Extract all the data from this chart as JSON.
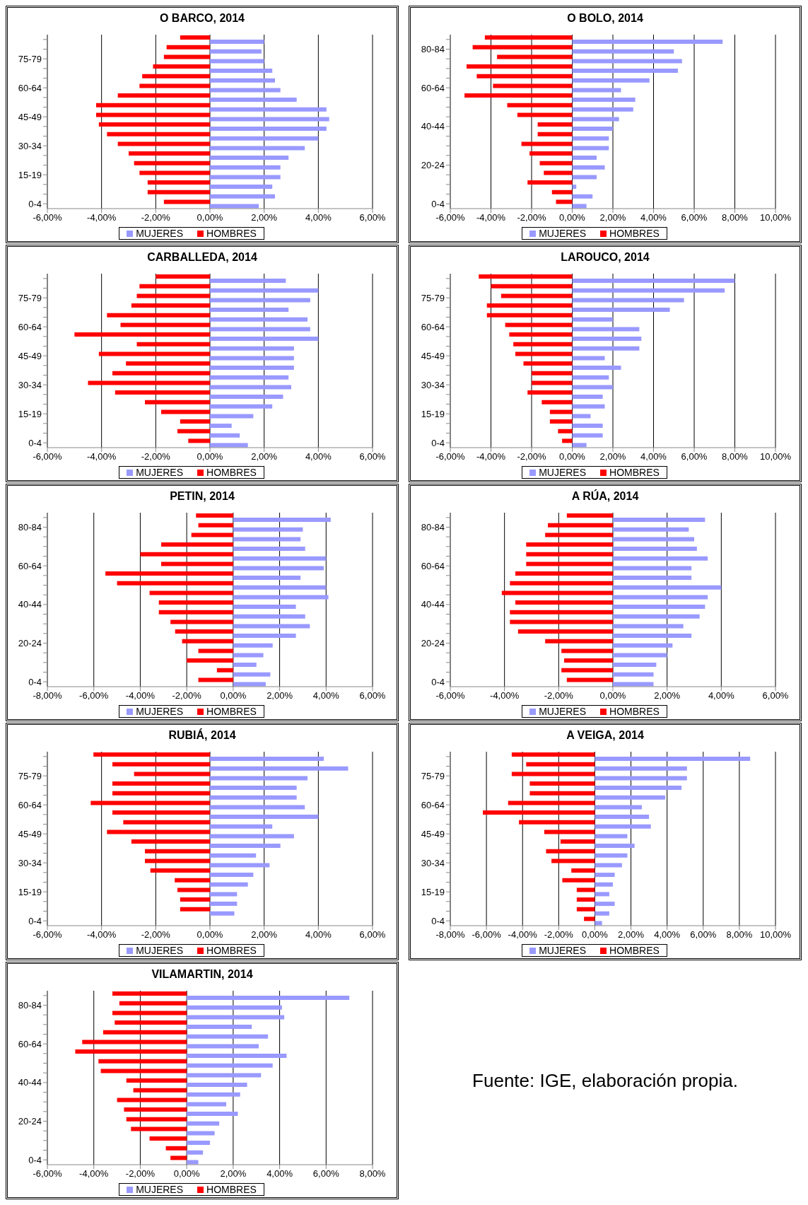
{
  "chart_data": [
    {
      "type": "bar",
      "orientation": "horizontal",
      "title": "O BARCO, 2014",
      "categories": [
        null,
        null,
        "75-79",
        null,
        null,
        "60-64",
        null,
        null,
        "45-49",
        null,
        null,
        "30-34",
        null,
        null,
        "15-19",
        null,
        null,
        "0-4"
      ],
      "series": [
        {
          "name": "MUJERES",
          "color": "#9999ff",
          "values": [
            2.0,
            1.9,
            2.0,
            2.3,
            2.4,
            2.6,
            3.2,
            4.3,
            4.4,
            4.3,
            4.0,
            3.5,
            2.9,
            2.6,
            2.6,
            2.3,
            2.4,
            1.8
          ]
        },
        {
          "name": "HOMBRES",
          "color": "#ff0000",
          "values": [
            -1.1,
            -1.6,
            -1.7,
            -2.1,
            -2.5,
            -2.6,
            -3.4,
            -4.2,
            -4.2,
            -4.1,
            -3.8,
            -3.4,
            -3.0,
            -2.8,
            -2.6,
            -2.3,
            -2.3,
            -1.7
          ]
        }
      ],
      "xlim": [
        -6,
        6
      ],
      "xticks": [
        {
          "value": -6,
          "label": "-6,00%"
        },
        {
          "value": -4,
          "label": "-4,00%"
        },
        {
          "value": -2,
          "label": "-2,00%"
        },
        {
          "value": 0,
          "label": "0,00%"
        },
        {
          "value": 2,
          "label": "2,00%"
        },
        {
          "value": 4,
          "label": "4,00%"
        },
        {
          "value": 6,
          "label": "6,00%"
        }
      ],
      "grid": "x",
      "legend": "bottom"
    },
    {
      "type": "bar",
      "orientation": "horizontal",
      "title": "O BOLO, 2014",
      "categories": [
        null,
        "80-84",
        null,
        null,
        null,
        "60-64",
        null,
        null,
        null,
        "40-44",
        null,
        null,
        null,
        "20-24",
        null,
        null,
        null,
        "0-4"
      ],
      "series": [
        {
          "name": "MUJERES",
          "color": "#9999ff",
          "values": [
            7.4,
            5.0,
            5.4,
            5.2,
            3.8,
            2.4,
            3.1,
            3.0,
            2.3,
            2.0,
            1.8,
            1.8,
            1.2,
            1.6,
            1.2,
            0.2,
            1.0,
            0.7
          ]
        },
        {
          "name": "HOMBRES",
          "color": "#ff0000",
          "values": [
            -4.3,
            -4.9,
            -3.7,
            -5.2,
            -4.7,
            -3.9,
            -5.3,
            -3.2,
            -2.7,
            -1.7,
            -1.7,
            -2.5,
            -2.1,
            -1.6,
            -1.4,
            -2.2,
            -1.0,
            -0.8
          ]
        }
      ],
      "xlim": [
        -6,
        10
      ],
      "xticks": [
        {
          "value": -6,
          "label": "-6,00%"
        },
        {
          "value": -4,
          "label": "-4,00%"
        },
        {
          "value": -2,
          "label": "-2,00%"
        },
        {
          "value": 0,
          "label": "0,00%"
        },
        {
          "value": 2,
          "label": "2,00%"
        },
        {
          "value": 4,
          "label": "4,00%"
        },
        {
          "value": 6,
          "label": "6,00%"
        },
        {
          "value": 8,
          "label": "8,00%"
        },
        {
          "value": 10,
          "label": "10,00%"
        }
      ],
      "grid": "x",
      "legend": "bottom"
    },
    {
      "type": "bar",
      "orientation": "horizontal",
      "title": "CARBALLEDA, 2014",
      "categories": [
        null,
        null,
        "75-79",
        null,
        null,
        "60-64",
        null,
        null,
        "45-49",
        null,
        null,
        "30-34",
        null,
        null,
        "15-19",
        null,
        null,
        "0-4"
      ],
      "series": [
        {
          "name": "MUJERES",
          "color": "#9999ff",
          "values": [
            2.8,
            4.0,
            3.7,
            2.9,
            3.6,
            3.7,
            4.0,
            3.1,
            3.1,
            3.1,
            2.9,
            3.0,
            2.7,
            2.3,
            1.6,
            0.8,
            1.1,
            1.4
          ]
        },
        {
          "name": "HOMBRES",
          "color": "#ff0000",
          "values": [
            -2.0,
            -2.6,
            -2.7,
            -2.9,
            -3.8,
            -3.3,
            -5.0,
            -2.7,
            -4.1,
            -3.1,
            -3.6,
            -4.5,
            -3.5,
            -2.4,
            -1.8,
            -1.1,
            -1.2,
            -0.8
          ]
        }
      ],
      "xlim": [
        -6,
        6
      ],
      "xticks": [
        {
          "value": -6,
          "label": "-6,00%"
        },
        {
          "value": -4,
          "label": "-4,00%"
        },
        {
          "value": -2,
          "label": "-2,00%"
        },
        {
          "value": 0,
          "label": "0,00%"
        },
        {
          "value": 2,
          "label": "2,00%"
        },
        {
          "value": 4,
          "label": "4,00%"
        },
        {
          "value": 6,
          "label": "6,00%"
        }
      ],
      "grid": "x",
      "legend": "bottom"
    },
    {
      "type": "bar",
      "orientation": "horizontal",
      "title": "LAROUCO, 2014",
      "categories": [
        null,
        null,
        "75-79",
        null,
        null,
        "60-64",
        null,
        null,
        "45-49",
        null,
        null,
        "30-34",
        null,
        null,
        "15-19",
        null,
        null,
        "0-4"
      ],
      "series": [
        {
          "name": "MUJERES",
          "color": "#9999ff",
          "values": [
            8.0,
            7.5,
            5.5,
            4.8,
            2.0,
            3.3,
            3.4,
            3.3,
            1.6,
            2.4,
            1.8,
            2.0,
            1.5,
            1.6,
            0.9,
            1.5,
            1.5,
            0.7
          ]
        },
        {
          "name": "HOMBRES",
          "color": "#ff0000",
          "values": [
            -4.6,
            -4.0,
            -3.5,
            -4.2,
            -4.2,
            -3.3,
            -3.1,
            -2.9,
            -2.8,
            -2.4,
            -2.0,
            -2.0,
            -2.2,
            -1.5,
            -1.1,
            -1.1,
            -0.7,
            -0.5
          ]
        }
      ],
      "xlim": [
        -6,
        10
      ],
      "xticks": [
        {
          "value": -6,
          "label": "-6,00%"
        },
        {
          "value": -4,
          "label": "-4,00%"
        },
        {
          "value": -2,
          "label": "-2,00%"
        },
        {
          "value": 0,
          "label": "0,00%"
        },
        {
          "value": 2,
          "label": "2,00%"
        },
        {
          "value": 4,
          "label": "4,00%"
        },
        {
          "value": 6,
          "label": "6,00%"
        },
        {
          "value": 8,
          "label": "8,00%"
        },
        {
          "value": 10,
          "label": "10,00%"
        }
      ],
      "grid": "x",
      "legend": "bottom"
    },
    {
      "type": "bar",
      "orientation": "horizontal",
      "title": "PETIN, 2014",
      "categories": [
        null,
        "80-84",
        null,
        null,
        null,
        "60-64",
        null,
        null,
        null,
        "40-44",
        null,
        null,
        null,
        "20-24",
        null,
        null,
        null,
        "0-4"
      ],
      "series": [
        {
          "name": "MUJERES",
          "color": "#9999ff",
          "values": [
            4.2,
            3.0,
            2.9,
            3.1,
            4.0,
            3.9,
            2.9,
            4.0,
            4.1,
            2.7,
            3.1,
            3.3,
            2.7,
            1.7,
            1.3,
            1.0,
            1.6,
            1.4
          ]
        },
        {
          "name": "HOMBRES",
          "color": "#ff0000",
          "values": [
            -1.6,
            -1.5,
            -1.8,
            -3.1,
            -4.0,
            -3.1,
            -5.5,
            -5.0,
            -3.6,
            -3.2,
            -3.2,
            -2.7,
            -2.5,
            -2.2,
            -1.5,
            -2.0,
            -0.7,
            -1.5
          ]
        }
      ],
      "xlim": [
        -8,
        6
      ],
      "xticks": [
        {
          "value": -8,
          "label": "-8,00%"
        },
        {
          "value": -6,
          "label": "-6,00%"
        },
        {
          "value": -4,
          "label": "-4,00%"
        },
        {
          "value": -2,
          "label": "-2,00%"
        },
        {
          "value": 0,
          "label": "0,00%"
        },
        {
          "value": 2,
          "label": "2,00%"
        },
        {
          "value": 4,
          "label": "4,00%"
        },
        {
          "value": 6,
          "label": "6,00%"
        }
      ],
      "grid": "x",
      "legend": "bottom"
    },
    {
      "type": "bar",
      "orientation": "horizontal",
      "title": "A RÚA, 2014",
      "categories": [
        null,
        "80-84",
        null,
        null,
        null,
        "60-64",
        null,
        null,
        null,
        "40-44",
        null,
        null,
        null,
        "20-24",
        null,
        null,
        null,
        "0-4"
      ],
      "series": [
        {
          "name": "MUJERES",
          "color": "#9999ff",
          "values": [
            3.4,
            2.8,
            3.0,
            3.1,
            3.5,
            2.9,
            2.9,
            4.0,
            3.5,
            3.4,
            3.2,
            2.6,
            2.9,
            2.2,
            2.0,
            1.6,
            1.5,
            1.5
          ]
        },
        {
          "name": "HOMBRES",
          "color": "#ff0000",
          "values": [
            -1.7,
            -2.4,
            -2.5,
            -3.2,
            -3.2,
            -3.2,
            -3.6,
            -3.8,
            -4.1,
            -3.6,
            -3.8,
            -3.8,
            -3.5,
            -2.5,
            -1.9,
            -1.8,
            -1.9,
            -1.7
          ]
        }
      ],
      "xlim": [
        -6,
        6
      ],
      "xticks": [
        {
          "value": -6,
          "label": "-6,00%"
        },
        {
          "value": -4,
          "label": "-4,00%"
        },
        {
          "value": -2,
          "label": "-2,00%"
        },
        {
          "value": 0,
          "label": "0,00%"
        },
        {
          "value": 2,
          "label": "2,00%"
        },
        {
          "value": 4,
          "label": "4,00%"
        },
        {
          "value": 6,
          "label": "6,00%"
        }
      ],
      "grid": "x",
      "legend": "bottom"
    },
    {
      "type": "bar",
      "orientation": "horizontal",
      "title": "RUBIÁ, 2014",
      "categories": [
        null,
        null,
        "75-79",
        null,
        null,
        "60-64",
        null,
        null,
        "45-49",
        null,
        null,
        "30-34",
        null,
        null,
        "15-19",
        null,
        null,
        "0-4"
      ],
      "series": [
        {
          "name": "MUJERES",
          "color": "#9999ff",
          "values": [
            4.2,
            5.1,
            3.6,
            3.2,
            3.2,
            3.5,
            4.0,
            2.3,
            3.1,
            2.6,
            1.7,
            2.2,
            1.6,
            1.4,
            1.0,
            1.0,
            0.9,
            null
          ]
        },
        {
          "name": "HOMBRES",
          "color": "#ff0000",
          "values": [
            -4.3,
            -3.6,
            -2.8,
            -3.6,
            -3.6,
            -4.4,
            -3.6,
            -3.2,
            -3.8,
            -2.9,
            -2.4,
            -2.4,
            -2.2,
            -1.3,
            -1.2,
            -1.1,
            -1.1,
            null
          ]
        }
      ],
      "xlim": [
        -6,
        6
      ],
      "xticks": [
        {
          "value": -6,
          "label": "-6,00%"
        },
        {
          "value": -4,
          "label": "-4,00%"
        },
        {
          "value": -2,
          "label": "-2,00%"
        },
        {
          "value": 0,
          "label": "0,00%"
        },
        {
          "value": 2,
          "label": "2,00%"
        },
        {
          "value": 4,
          "label": "4,00%"
        },
        {
          "value": 6,
          "label": "6,00%"
        }
      ],
      "grid": "x",
      "legend": "bottom"
    },
    {
      "type": "bar",
      "orientation": "horizontal",
      "title": "A VEIGA, 2014",
      "categories": [
        null,
        null,
        "75-79",
        null,
        null,
        "60-64",
        null,
        null,
        "45-49",
        null,
        null,
        "30-34",
        null,
        null,
        "15-19",
        null,
        null,
        "0-4"
      ],
      "series": [
        {
          "name": "MUJERES",
          "color": "#9999ff",
          "values": [
            8.6,
            5.1,
            5.1,
            4.8,
            3.9,
            2.6,
            3.0,
            3.1,
            1.8,
            2.2,
            1.8,
            1.5,
            1.1,
            1.0,
            0.8,
            1.1,
            0.8,
            0.4
          ]
        },
        {
          "name": "HOMBRES",
          "color": "#ff0000",
          "values": [
            -4.6,
            -3.8,
            -4.6,
            -3.6,
            -3.6,
            -4.8,
            -6.2,
            -4.2,
            -2.8,
            -1.9,
            -2.7,
            -2.4,
            -1.3,
            -1.8,
            -1.0,
            -1.0,
            -1.0,
            -0.6
          ]
        }
      ],
      "xlim": [
        -8,
        10
      ],
      "xticks": [
        {
          "value": -8,
          "label": "-8,00%"
        },
        {
          "value": -6,
          "label": "-6,00%"
        },
        {
          "value": -4,
          "label": "-4,00%"
        },
        {
          "value": -2,
          "label": "-2,00%"
        },
        {
          "value": 0,
          "label": "0,00%"
        },
        {
          "value": 2,
          "label": "2,00%"
        },
        {
          "value": 4,
          "label": "4,00%"
        },
        {
          "value": 6,
          "label": "6,00%"
        },
        {
          "value": 8,
          "label": "8,00%"
        },
        {
          "value": 10,
          "label": "10,00%"
        }
      ],
      "grid": "x",
      "legend": "bottom"
    },
    {
      "type": "bar",
      "orientation": "horizontal",
      "title": "VILAMARTIN, 2014",
      "categories": [
        null,
        "80-84",
        null,
        null,
        null,
        "60-64",
        null,
        null,
        null,
        "40-44",
        null,
        null,
        null,
        "20-24",
        null,
        null,
        null,
        "0-4"
      ],
      "series": [
        {
          "name": "MUJERES",
          "color": "#9999ff",
          "values": [
            7.0,
            4.1,
            4.2,
            2.8,
            3.5,
            3.1,
            4.3,
            3.7,
            3.2,
            2.6,
            2.3,
            1.7,
            2.2,
            1.4,
            1.2,
            1.0,
            0.7,
            0.5
          ]
        },
        {
          "name": "HOMBRES",
          "color": "#ff0000",
          "values": [
            -3.2,
            -2.9,
            -3.2,
            -3.1,
            -3.6,
            -4.5,
            -4.8,
            -3.8,
            -3.7,
            -2.6,
            -2.3,
            -3.0,
            -2.7,
            -2.6,
            -2.4,
            -1.6,
            -0.9,
            -0.7
          ]
        }
      ],
      "xlim": [
        -6,
        8
      ],
      "xticks": [
        {
          "value": -6,
          "label": "-6,00%"
        },
        {
          "value": -4,
          "label": "-4,00%"
        },
        {
          "value": -2,
          "label": "-2,00%"
        },
        {
          "value": 0,
          "label": "0,00%"
        },
        {
          "value": 2,
          "label": "2,00%"
        },
        {
          "value": 4,
          "label": "4,00%"
        },
        {
          "value": 6,
          "label": "6,00%"
        },
        {
          "value": 8,
          "label": "8,00%"
        }
      ],
      "grid": "x",
      "legend": "bottom"
    },
    {
      "type": "other",
      "annotations": [
        "Fuente: IGE, elaboración propia."
      ]
    }
  ]
}
